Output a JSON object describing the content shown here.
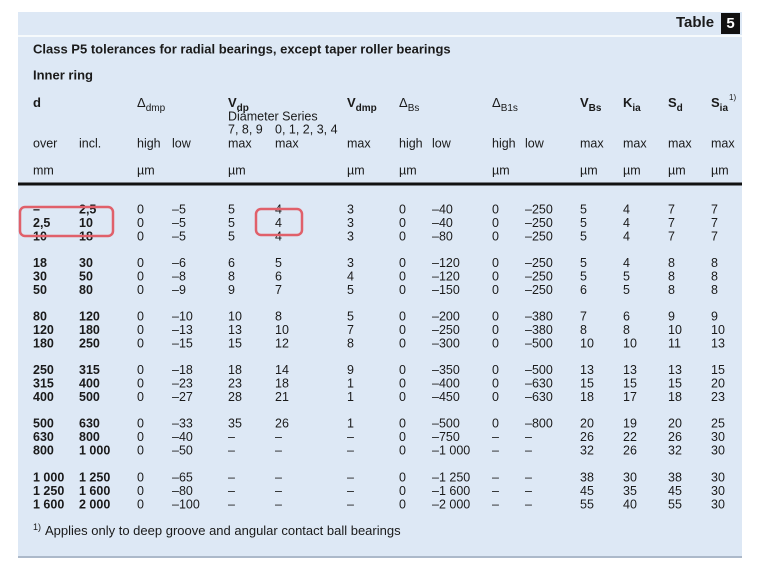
{
  "header": {
    "label": "Table",
    "number": "5"
  },
  "title": "Class P5 tolerances for radial bearings, except taper roller bearings",
  "subtitle": "Inner ring",
  "columns": [
    {
      "symbol": "d"
    },
    {
      "symbol": "Δ",
      "sub": "dmp"
    },
    {
      "symbol": "V",
      "sub": "dp"
    },
    {
      "symbol": "V",
      "sub": "dmp"
    },
    {
      "symbol": "Δ",
      "sub": "Bs"
    },
    {
      "symbol": "Δ",
      "sub": "B1s"
    },
    {
      "symbol": "V",
      "sub": "Bs"
    },
    {
      "symbol": "K",
      "sub": "ia"
    },
    {
      "symbol": "S",
      "sub": "d"
    },
    {
      "symbol": "S",
      "sub": "ia",
      "sup": "1)"
    }
  ],
  "diameter_series": {
    "label": "Diameter Series",
    "groups": [
      "7, 8, 9",
      "0, 1, 2, 3, 4"
    ]
  },
  "subheaders": [
    "over",
    "incl.",
    "high",
    "low",
    "max",
    "max",
    "max",
    "high",
    "low",
    "high",
    "low",
    "max",
    "max",
    "max",
    "max"
  ],
  "units": [
    "mm",
    "µm",
    "µm",
    "µm",
    "µm",
    "µm",
    "µm",
    "µm",
    "µm",
    "µm"
  ],
  "rows": [
    [
      "–",
      "2,5",
      "0",
      "–5",
      "5",
      "4",
      "3",
      "0",
      "–40",
      "0",
      "–250",
      "5",
      "4",
      "7",
      "7"
    ],
    [
      "2,5",
      "10",
      "0",
      "–5",
      "5",
      "4",
      "3",
      "0",
      "–40",
      "0",
      "–250",
      "5",
      "4",
      "7",
      "7"
    ],
    [
      "10",
      "18",
      "0",
      "–5",
      "5",
      "4",
      "3",
      "0",
      "–80",
      "0",
      "–250",
      "5",
      "4",
      "7",
      "7"
    ],
    [
      "18",
      "30",
      "0",
      "–6",
      "6",
      "5",
      "3",
      "0",
      "–120",
      "0",
      "–250",
      "5",
      "4",
      "8",
      "8"
    ],
    [
      "30",
      "50",
      "0",
      "–8",
      "8",
      "6",
      "4",
      "0",
      "–120",
      "0",
      "–250",
      "5",
      "5",
      "8",
      "8"
    ],
    [
      "50",
      "80",
      "0",
      "–9",
      "9",
      "7",
      "5",
      "0",
      "–150",
      "0",
      "–250",
      "6",
      "5",
      "8",
      "8"
    ],
    [
      "80",
      "120",
      "0",
      "–10",
      "10",
      "8",
      "5",
      "0",
      "–200",
      "0",
      "–380",
      "7",
      "6",
      "9",
      "9"
    ],
    [
      "120",
      "180",
      "0",
      "–13",
      "13",
      "10",
      "7",
      "0",
      "–250",
      "0",
      "–380",
      "8",
      "8",
      "10",
      "10"
    ],
    [
      "180",
      "250",
      "0",
      "–15",
      "15",
      "12",
      "8",
      "0",
      "–300",
      "0",
      "–500",
      "10",
      "10",
      "11",
      "13"
    ],
    [
      "250",
      "315",
      "0",
      "–18",
      "18",
      "14",
      "9",
      "0",
      "–350",
      "0",
      "–500",
      "13",
      "13",
      "13",
      "15"
    ],
    [
      "315",
      "400",
      "0",
      "–23",
      "23",
      "18",
      "1",
      "0",
      "–400",
      "0",
      "–630",
      "15",
      "15",
      "15",
      "20"
    ],
    [
      "400",
      "500",
      "0",
      "–27",
      "28",
      "21",
      "1",
      "0",
      "–450",
      "0",
      "–630",
      "18",
      "17",
      "18",
      "23"
    ],
    [
      "500",
      "630",
      "0",
      "–33",
      "35",
      "26",
      "1",
      "0",
      "–500",
      "0",
      "–800",
      "20",
      "19",
      "20",
      "25"
    ],
    [
      "630",
      "800",
      "0",
      "–40",
      "–",
      "–",
      "–",
      "0",
      "–750",
      "–",
      "–",
      "26",
      "22",
      "26",
      "30"
    ],
    [
      "800",
      "1 000",
      "0",
      "–50",
      "–",
      "–",
      "–",
      "0",
      "–1 000",
      "–",
      "–",
      "32",
      "26",
      "32",
      "30"
    ],
    [
      "1 000",
      "1 250",
      "0",
      "–65",
      "–",
      "–",
      "–",
      "0",
      "–1 250",
      "–",
      "–",
      "38",
      "30",
      "38",
      "30"
    ],
    [
      "1 250",
      "1 600",
      "0",
      "–80",
      "–",
      "–",
      "–",
      "0",
      "–1 600",
      "–",
      "–",
      "45",
      "35",
      "45",
      "30"
    ],
    [
      "1 600",
      "2 000",
      "0",
      "–100",
      "–",
      "–",
      "–",
      "0",
      "–2 000",
      "–",
      "–",
      "55",
      "40",
      "55",
      "30"
    ]
  ],
  "footnote": {
    "mark": "1)",
    "text": "Applies only to deep groove and angular contact ball bearings"
  }
}
